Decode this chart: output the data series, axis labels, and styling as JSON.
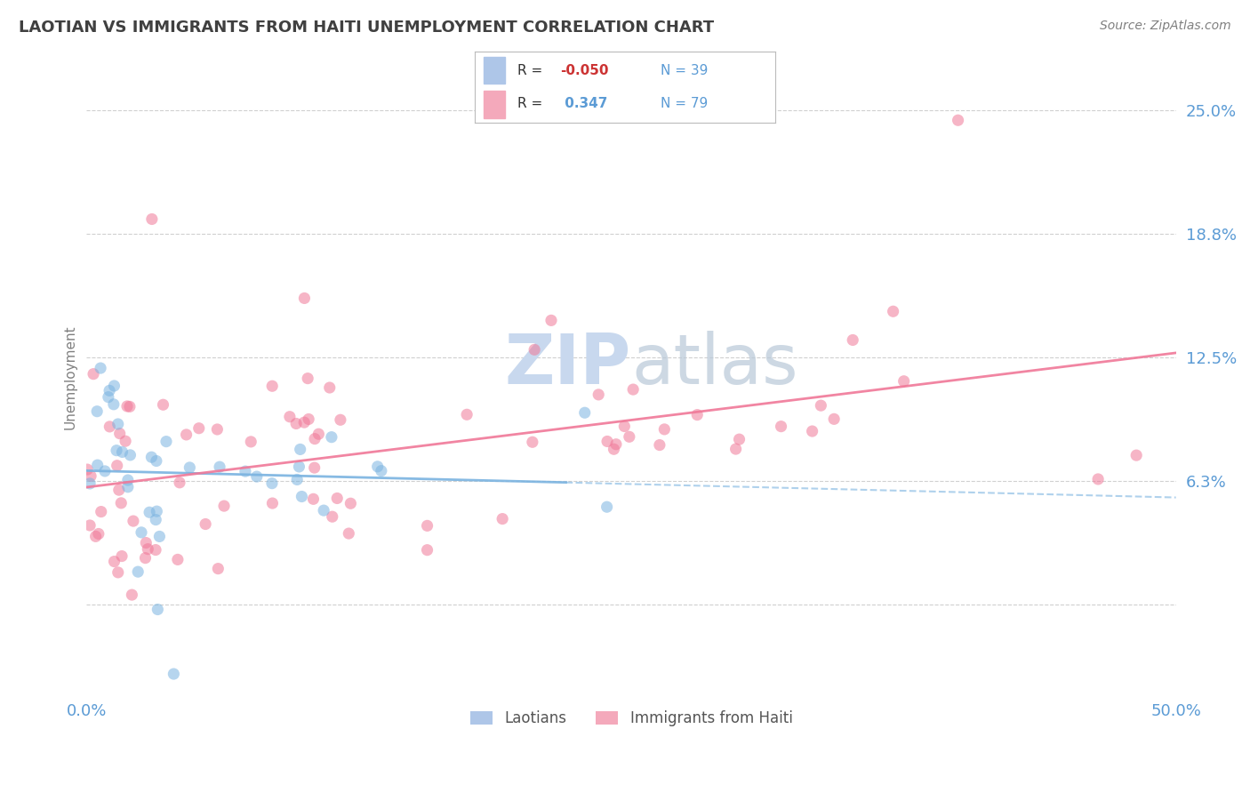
{
  "title": "LAOTIAN VS IMMIGRANTS FROM HAITI UNEMPLOYMENT CORRELATION CHART",
  "source": "Source: ZipAtlas.com",
  "ylabel": "Unemployment",
  "ytick_vals": [
    0.0,
    0.0625,
    0.125,
    0.1875,
    0.25
  ],
  "ytick_labels": [
    "",
    "6.3%",
    "12.5%",
    "18.8%",
    "25.0%"
  ],
  "xtick_vals": [
    0.0,
    0.5
  ],
  "xtick_labels": [
    "0.0%",
    "50.0%"
  ],
  "xmin": 0.0,
  "xmax": 0.5,
  "ymin": -0.045,
  "ymax": 0.275,
  "legend_labels": [
    "Laotians",
    "Immigrants from Haiti"
  ],
  "laotian_color": "#7ab3e0",
  "haiti_color": "#f07898",
  "laotian_patch_color": "#aec6e8",
  "haiti_patch_color": "#f4a9bb",
  "r_lao": -0.05,
  "n_lao": 39,
  "r_haiti": 0.347,
  "n_haiti": 79,
  "lao_line_start_y": 0.073,
  "lao_line_end_y": 0.058,
  "haiti_line_start_y": 0.06,
  "haiti_line_end_y": 0.125,
  "watermark_color": "#c8d8ee",
  "title_color": "#404040",
  "source_color": "#808080",
  "axis_label_color": "#5b9bd5",
  "grid_color": "#d0d0d0",
  "ylabel_color": "#808080"
}
